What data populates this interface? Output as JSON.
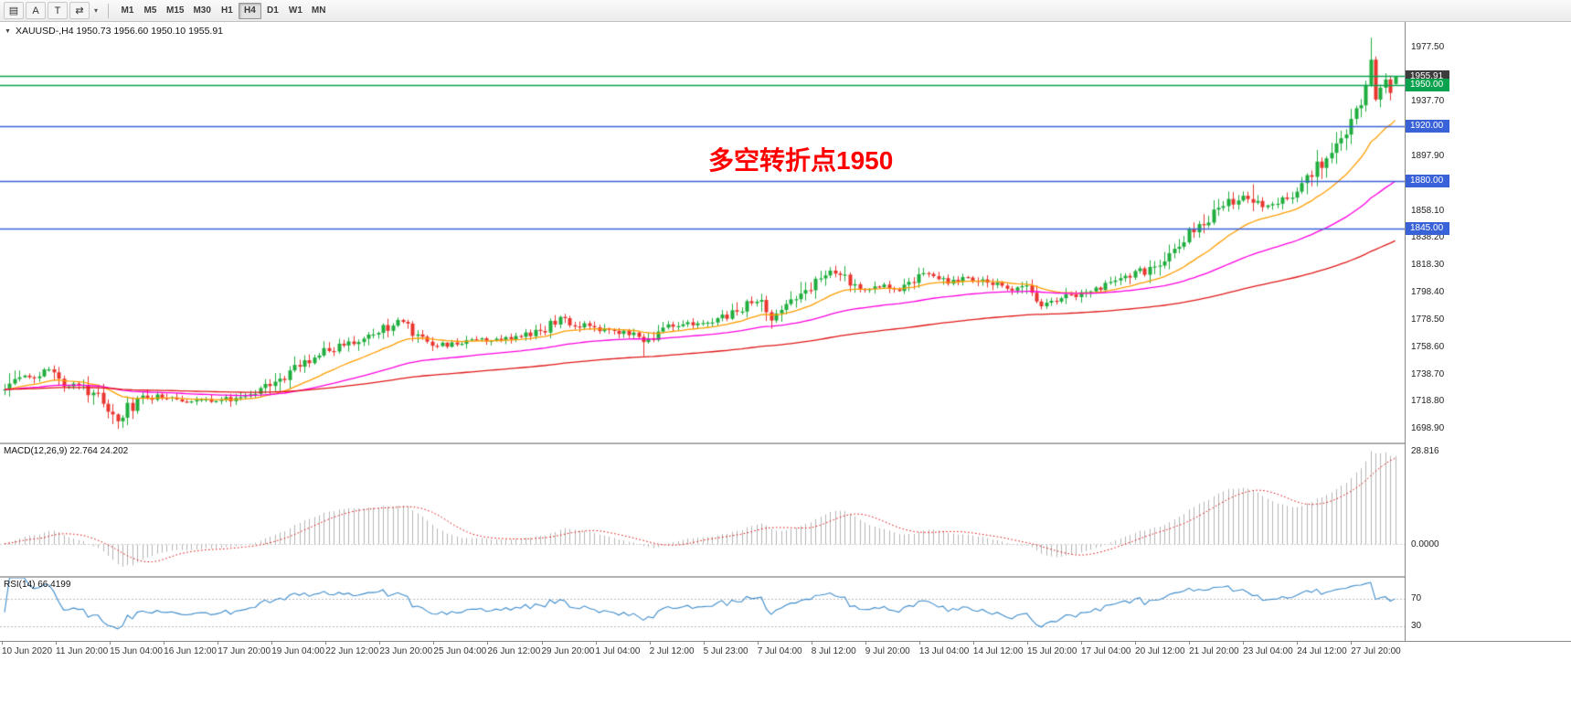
{
  "toolbar": {
    "tools": [
      {
        "id": "chart-list",
        "glyph": "▤"
      },
      {
        "id": "text-label-a",
        "glyph": "A"
      },
      {
        "id": "text-tool",
        "glyph": "T"
      },
      {
        "id": "cycle-arrows",
        "glyph": "⇄"
      }
    ],
    "dropdown_caret": "▾",
    "timeframes": [
      "M1",
      "M5",
      "M15",
      "M30",
      "H1",
      "H4",
      "D1",
      "W1",
      "MN"
    ],
    "active_timeframe": "H4"
  },
  "chart": {
    "symbol_marker": "▼",
    "title": "XAUUSD-,H4  1950.73 1956.60 1950.10 1955.91",
    "annotation": "多空转折点1950",
    "annotation_color": "#ff0000",
    "price_scale_ticks": [
      "1977.50",
      "1957.60",
      "1937.70",
      "1917.80",
      "1897.90",
      "1878.00",
      "1858.10",
      "1838.20",
      "1818.30",
      "1798.40",
      "1778.50",
      "1758.60",
      "1738.70",
      "1718.80",
      "1698.90"
    ],
    "price_tags": [
      {
        "text": "1955.91",
        "value": 1955.91,
        "bg": "#3c3c3c",
        "name": "bid-price-tag"
      },
      {
        "text": "1950.00",
        "value": 1950.0,
        "bg": "#0aa24e",
        "name": "hline-tag-1950"
      },
      {
        "text": "1920.00",
        "value": 1920.0,
        "bg": "#3a62d8",
        "name": "hline-tag-1920"
      },
      {
        "text": "1880.00",
        "value": 1880.0,
        "bg": "#3a62d8",
        "name": "hline-tag-1880"
      },
      {
        "text": "1845.00",
        "value": 1845.0,
        "bg": "#3a62d8",
        "name": "hline-tag-1845"
      }
    ],
    "hlines": [
      {
        "value": 1956.6,
        "color": "#0aa24e"
      },
      {
        "value": 1950.0,
        "color": "#0aa24e"
      },
      {
        "value": 1920.0,
        "color": "#3a62d8"
      },
      {
        "value": 1880.0,
        "color": "#3a62d8"
      },
      {
        "value": 1845.0,
        "color": "#3a62d8"
      }
    ],
    "price_min": 1689.0,
    "price_max": 1996.0
  },
  "chart_data": {
    "type": "candlestick",
    "symbol": "XAUUSD-",
    "timeframe": "H4",
    "title": "XAUUSD-,H4",
    "ohlc_last": {
      "open": 1950.73,
      "high": 1956.6,
      "low": 1950.1,
      "close": 1955.91
    },
    "bars": 284,
    "seed": 20200727,
    "base_vol": 2.6,
    "up_color": "#1fae3d",
    "down_color": "#e8352e",
    "close_path": [
      [
        0,
        1727
      ],
      [
        3,
        1739
      ],
      [
        6,
        1735
      ],
      [
        9,
        1744
      ],
      [
        12,
        1730
      ],
      [
        15,
        1733
      ],
      [
        18,
        1725
      ],
      [
        21,
        1716
      ],
      [
        23,
        1703
      ],
      [
        25,
        1714
      ],
      [
        28,
        1721
      ],
      [
        32,
        1723
      ],
      [
        36,
        1719
      ],
      [
        40,
        1721
      ],
      [
        44,
        1719
      ],
      [
        48,
        1723
      ],
      [
        52,
        1727
      ],
      [
        55,
        1733
      ],
      [
        58,
        1741
      ],
      [
        62,
        1749
      ],
      [
        66,
        1757
      ],
      [
        70,
        1761
      ],
      [
        74,
        1767
      ],
      [
        78,
        1773
      ],
      [
        80,
        1777
      ],
      [
        83,
        1769
      ],
      [
        86,
        1762
      ],
      [
        90,
        1760
      ],
      [
        95,
        1763
      ],
      [
        100,
        1764
      ],
      [
        105,
        1767
      ],
      [
        110,
        1771
      ],
      [
        113,
        1782
      ],
      [
        115,
        1776
      ],
      [
        119,
        1773
      ],
      [
        123,
        1771
      ],
      [
        127,
        1769
      ],
      [
        130,
        1763
      ],
      [
        134,
        1772
      ],
      [
        138,
        1775
      ],
      [
        143,
        1777
      ],
      [
        147,
        1782
      ],
      [
        151,
        1790
      ],
      [
        154,
        1795
      ],
      [
        156,
        1781
      ],
      [
        159,
        1787
      ],
      [
        163,
        1800
      ],
      [
        166,
        1811
      ],
      [
        169,
        1814
      ],
      [
        172,
        1806
      ],
      [
        175,
        1799
      ],
      [
        179,
        1805
      ],
      [
        182,
        1801
      ],
      [
        185,
        1807
      ],
      [
        188,
        1812
      ],
      [
        192,
        1806
      ],
      [
        196,
        1809
      ],
      [
        200,
        1806
      ],
      [
        204,
        1802
      ],
      [
        208,
        1800
      ],
      [
        211,
        1789
      ],
      [
        214,
        1792
      ],
      [
        218,
        1797
      ],
      [
        222,
        1802
      ],
      [
        226,
        1806
      ],
      [
        230,
        1811
      ],
      [
        234,
        1819
      ],
      [
        237,
        1828
      ],
      [
        240,
        1839
      ],
      [
        243,
        1848
      ],
      [
        246,
        1856
      ],
      [
        249,
        1863
      ],
      [
        252,
        1871
      ],
      [
        254,
        1867
      ],
      [
        257,
        1861
      ],
      [
        260,
        1866
      ],
      [
        263,
        1875
      ],
      [
        266,
        1886
      ],
      [
        269,
        1899
      ],
      [
        272,
        1913
      ],
      [
        274,
        1923
      ],
      [
        276,
        1934
      ],
      [
        277,
        1949
      ],
      [
        278,
        1968
      ],
      [
        279,
        1938
      ],
      [
        280,
        1947
      ],
      [
        281,
        1952
      ],
      [
        282,
        1948
      ],
      [
        283,
        1955.9
      ]
    ],
    "extremes": [
      {
        "i": 23,
        "l": 1698.9
      },
      {
        "i": 130,
        "l": 1752.0
      },
      {
        "i": 254,
        "h": 1877.5
      },
      {
        "i": 278,
        "h": 1984.5
      }
    ],
    "moving_averages": [
      {
        "period": 20,
        "color": "#ff9d00"
      },
      {
        "period": 60,
        "color": "#ff00e0"
      },
      {
        "period": 150,
        "color": "#e01818"
      }
    ]
  },
  "macd": {
    "label": "MACD(12,26,9) 22.764 24.202",
    "params": [
      12,
      26,
      9
    ],
    "last_macd": "22.764",
    "last_signal": "24.202",
    "scale_labels": [
      "28.816",
      "0.0000"
    ],
    "hist_color": "#b4b4b4",
    "signal_color": "#e00000"
  },
  "rsi": {
    "label": "RSI(14) 66.4199",
    "period": 14,
    "last_value": "66.4199",
    "levels": [
      70,
      30
    ],
    "scale_labels": [
      "70",
      "30"
    ],
    "line_color": "#3e8ccc",
    "scale_min": 10,
    "scale_max": 100
  },
  "time_axis": {
    "labels": [
      "10 Jun 2020",
      "11 Jun 20:00",
      "15 Jun 04:00",
      "16 Jun 12:00",
      "17 Jun 20:00",
      "19 Jun 04:00",
      "22 Jun 12:00",
      "23 Jun 20:00",
      "25 Jun 04:00",
      "26 Jun 12:00",
      "29 Jun 20:00",
      "1 Jul 04:00",
      "2 Jul 12:00",
      "5 Jul 23:00",
      "7 Jul 04:00",
      "8 Jul 12:00",
      "9 Jul 20:00",
      "13 Jul 04:00",
      "14 Jul 12:00",
      "15 Jul 20:00",
      "17 Jul 04:00",
      "20 Jul 12:00",
      "21 Jul 20:00",
      "23 Jul 04:00",
      "24 Jul 12:00",
      "27 Jul 20:00"
    ]
  }
}
